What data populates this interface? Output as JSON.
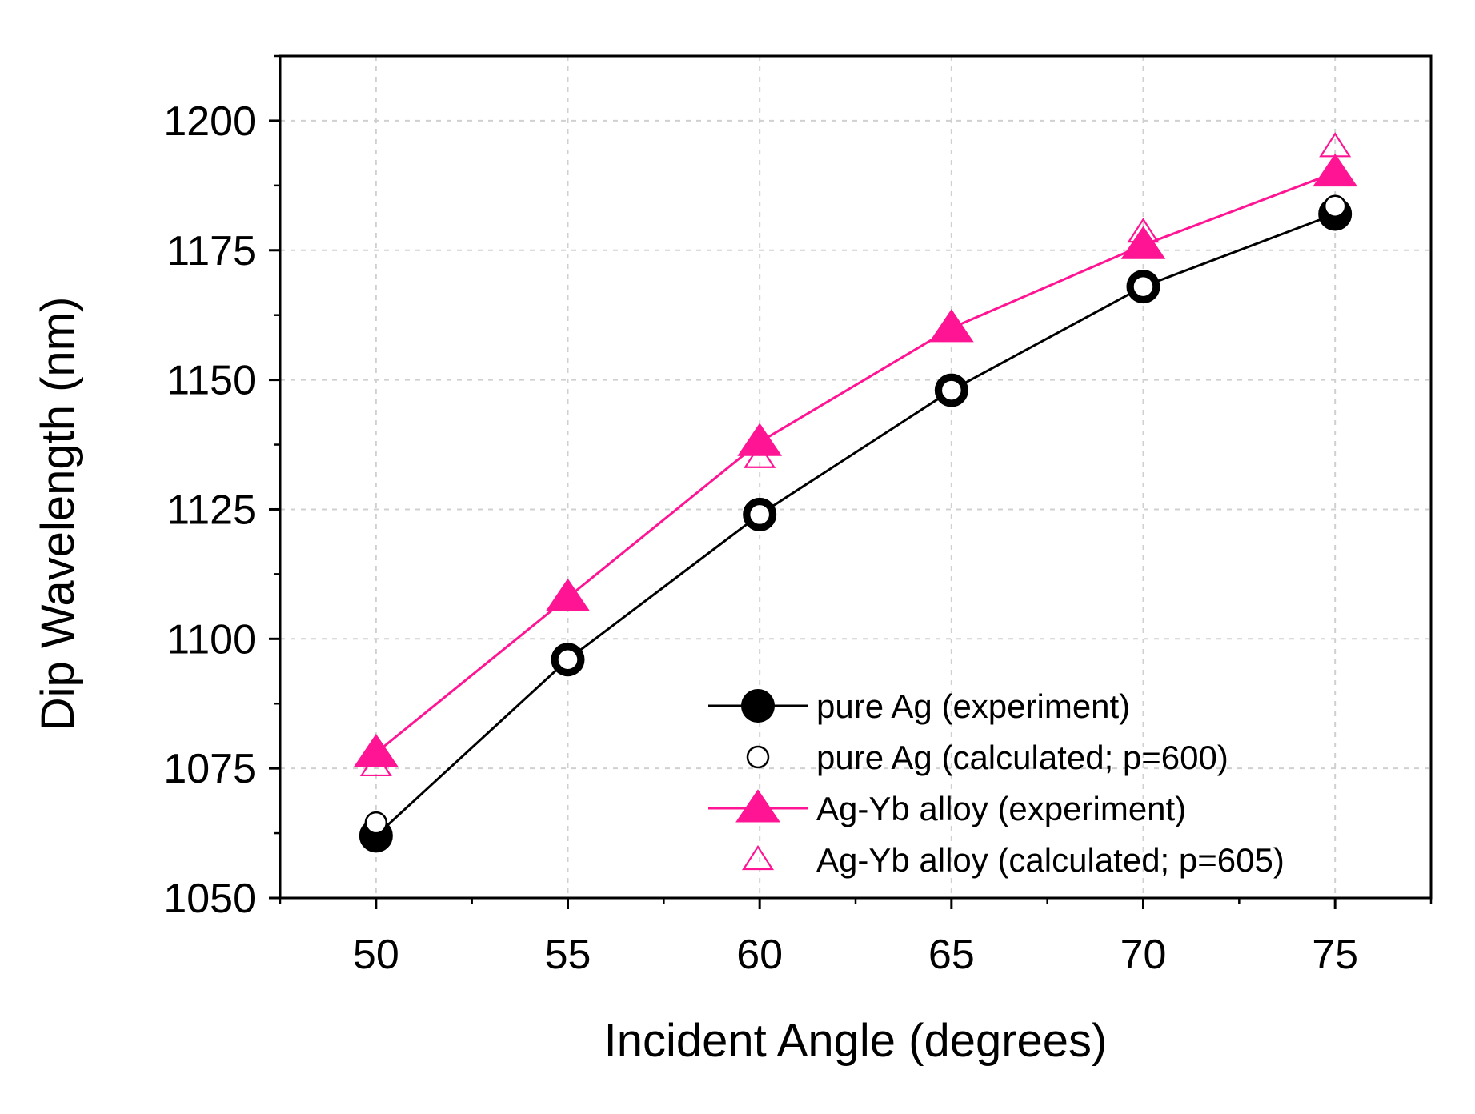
{
  "chart_data": {
    "type": "line",
    "title": "",
    "xlabel": "Incident Angle (degrees)",
    "ylabel": "Dip Wavelength (nm)",
    "xlim": [
      47.5,
      77.5
    ],
    "ylim": [
      1050,
      1212.5
    ],
    "xticks": [
      50,
      55,
      60,
      65,
      70,
      75
    ],
    "xtick_labels": [
      "50",
      "55",
      "60",
      "65",
      "70",
      "75"
    ],
    "yticks": [
      1050,
      1075,
      1100,
      1125,
      1150,
      1175,
      1200
    ],
    "ytick_labels": [
      "1050",
      "1075",
      "1100",
      "1125",
      "1150",
      "1175",
      "1200"
    ],
    "grid": true,
    "legend_position": "bottom-right",
    "x": [
      50,
      55,
      60,
      65,
      70,
      75
    ],
    "series": [
      {
        "name": "pure Ag (experiment)",
        "marker": "filled-circle",
        "line": true,
        "color": "#000000",
        "values": [
          1062,
          1096,
          1124,
          1148,
          1168,
          1182
        ]
      },
      {
        "name": "pure Ag (calculated; p=600)",
        "marker": "open-circle",
        "line": false,
        "color": "#000000",
        "values": [
          1064.5,
          1096,
          1124,
          1148,
          1168,
          1183.5
        ]
      },
      {
        "name": "Ag-Yb alloy (experiment)",
        "marker": "filled-triangle",
        "line": true,
        "color": "#ff1493",
        "values": [
          1078,
          1108,
          1138,
          1160,
          1176,
          1190
        ]
      },
      {
        "name": "Ag-Yb alloy (calculated; p=605)",
        "marker": "open-triangle",
        "line": false,
        "color": "#ff1493",
        "values": [
          1075.5,
          1107.5,
          1135,
          1160,
          1178.5,
          1195
        ]
      }
    ]
  }
}
